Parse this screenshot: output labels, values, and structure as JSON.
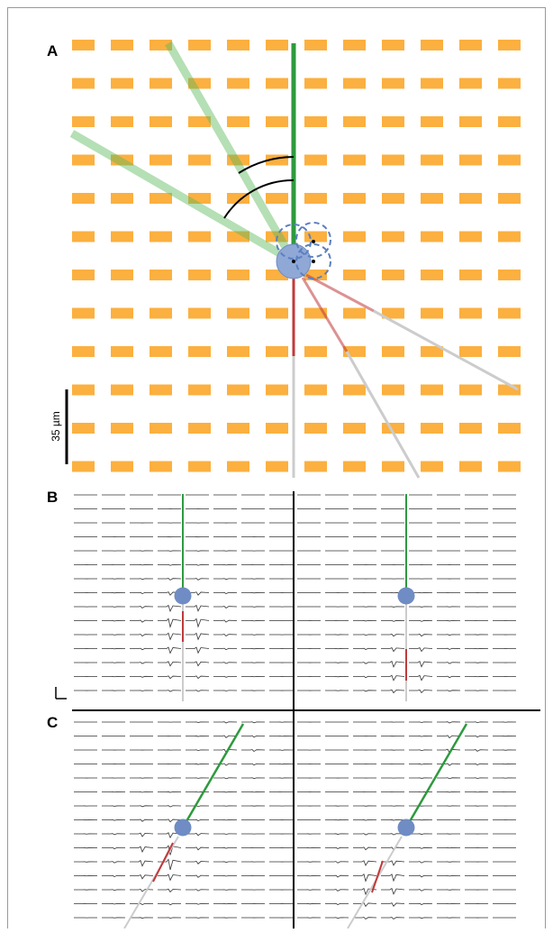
{
  "panels": {
    "a": {
      "label": "A",
      "scale_bar": "35 µm"
    },
    "b": {
      "label": "B"
    },
    "c": {
      "label": "C"
    }
  }
}
